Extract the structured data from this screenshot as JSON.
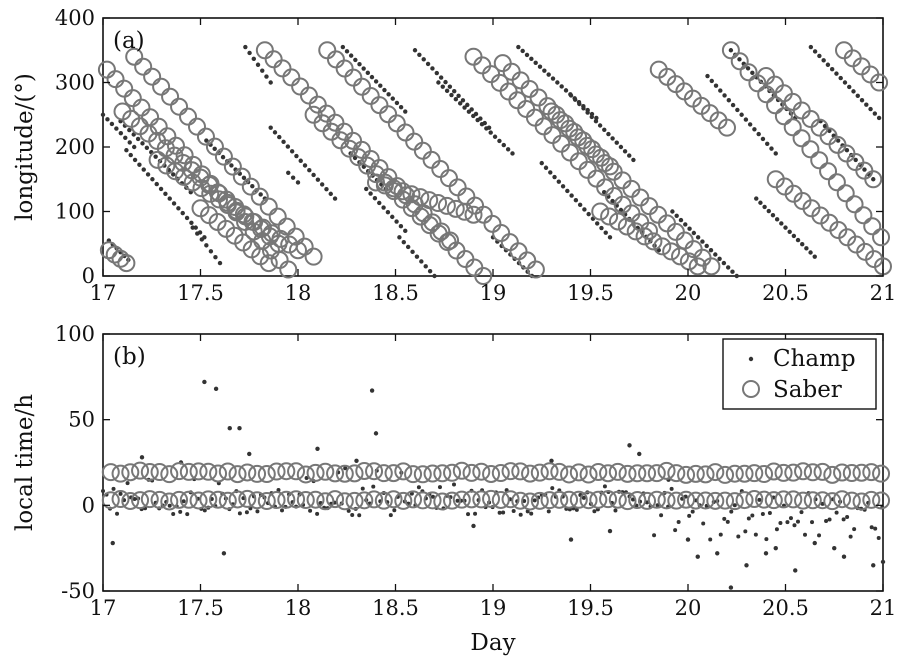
{
  "chart_data": [
    {
      "type": "scatter",
      "panel_label": "(a)",
      "xlabel": "",
      "ylabel": "longitude/(°)",
      "xlim": [
        17,
        21
      ],
      "ylim": [
        0,
        400
      ],
      "xticks": [
        17,
        17.5,
        18,
        18.5,
        19,
        19.5,
        20,
        20.5,
        21
      ],
      "xtick_labels": [
        "17",
        "17.5",
        "18",
        "18.5",
        "19",
        "19.5",
        "20",
        "20.5",
        "21"
      ],
      "yticks": [
        0,
        100,
        200,
        300,
        400
      ],
      "ytick_labels": [
        "0",
        "100",
        "200",
        "300",
        "400"
      ],
      "grid": false,
      "legend": null,
      "series": [
        {
          "name": "Champ",
          "marker": "dot",
          "color": "#333333",
          "tracks": [
            {
              "x": [
                17.0,
                17.16
              ],
              "y": [
                250,
                200
              ]
            },
            {
              "x": [
                17.03,
                17.13
              ],
              "y": [
                55,
                25
              ]
            },
            {
              "x": [
                17.09,
                17.45
              ],
              "y": [
                240,
                130
              ]
            },
            {
              "x": [
                17.12,
                17.52
              ],
              "y": [
                195,
                60
              ]
            },
            {
              "x": [
                17.46,
                17.6
              ],
              "y": [
                75,
                20
              ]
            },
            {
              "x": [
                17.53,
                17.83
              ],
              "y": [
                210,
                120
              ]
            },
            {
              "x": [
                17.73,
                17.86
              ],
              "y": [
                355,
                300
              ]
            },
            {
              "x": [
                17.86,
                18.19
              ],
              "y": [
                230,
                120
              ]
            },
            {
              "x": [
                17.95,
                18.0
              ],
              "y": [
                160,
                145
              ]
            },
            {
              "x": [
                18.23,
                18.55
              ],
              "y": [
                355,
                255
              ]
            },
            {
              "x": [
                18.27,
                18.45
              ],
              "y": [
                190,
                135
              ]
            },
            {
              "x": [
                18.35,
                18.55
              ],
              "y": [
                135,
                70
              ]
            },
            {
              "x": [
                18.52,
                18.7
              ],
              "y": [
                60,
                0
              ]
            },
            {
              "x": [
                18.6,
                18.98
              ],
              "y": [
                350,
                230
              ]
            },
            {
              "x": [
                18.72,
                19.1
              ],
              "y": [
                300,
                190
              ]
            },
            {
              "x": [
                19.0,
                19.2
              ],
              "y": [
                60,
                0
              ]
            },
            {
              "x": [
                19.13,
                19.53
              ],
              "y": [
                355,
                245
              ]
            },
            {
              "x": [
                19.25,
                19.6
              ],
              "y": [
                175,
                60
              ]
            },
            {
              "x": [
                19.4,
                19.72
              ],
              "y": [
                280,
                180
              ]
            },
            {
              "x": [
                19.57,
                19.85
              ],
              "y": [
                130,
                40
              ]
            },
            {
              "x": [
                19.92,
                20.25
              ],
              "y": [
                100,
                0
              ]
            },
            {
              "x": [
                20.1,
                20.45
              ],
              "y": [
                310,
                190
              ]
            },
            {
              "x": [
                20.22,
                20.55
              ],
              "y": [
                350,
                245
              ]
            },
            {
              "x": [
                20.35,
                20.65
              ],
              "y": [
                120,
                30
              ]
            },
            {
              "x": [
                20.63,
                20.98
              ],
              "y": [
                355,
                245
              ]
            },
            {
              "x": [
                20.68,
                20.95
              ],
              "y": [
                240,
                150
              ]
            }
          ]
        },
        {
          "name": "Saber",
          "marker": "open-circle",
          "color": "#777777",
          "tracks": [
            {
              "x": [
                17.02,
                17.95
              ],
              "y": [
                320,
                10
              ]
            },
            {
              "x": [
                17.16,
                18.08
              ],
              "y": [
                340,
                30
              ]
            },
            {
              "x": [
                17.1,
                17.9
              ],
              "y": [
                255,
                50
              ]
            },
            {
              "x": [
                17.28,
                18.0
              ],
              "y": [
                180,
                40
              ]
            },
            {
              "x": [
                17.5,
                17.85
              ],
              "y": [
                105,
                20
              ]
            },
            {
              "x": [
                17.03,
                17.12
              ],
              "y": [
                40,
                20
              ]
            },
            {
              "x": [
                17.83,
                18.78
              ],
              "y": [
                350,
                55
              ]
            },
            {
              "x": [
                18.08,
                18.95
              ],
              "y": [
                250,
                0
              ]
            },
            {
              "x": [
                18.15,
                19.22
              ],
              "y": [
                350,
                10
              ]
            },
            {
              "x": [
                18.4,
                18.9
              ],
              "y": [
                145,
                95
              ]
            },
            {
              "x": [
                18.9,
                19.8
              ],
              "y": [
                340,
                70
              ]
            },
            {
              "x": [
                19.05,
                19.6
              ],
              "y": [
                330,
                170
              ]
            },
            {
              "x": [
                19.3,
                20.12
              ],
              "y": [
                255,
                15
              ]
            },
            {
              "x": [
                19.55,
                20.05
              ],
              "y": [
                100,
                15
              ]
            },
            {
              "x": [
                19.85,
                20.2
              ],
              "y": [
                320,
                230
              ]
            },
            {
              "x": [
                20.22,
                20.99
              ],
              "y": [
                350,
                60
              ]
            },
            {
              "x": [
                20.4,
                20.95
              ],
              "y": [
                310,
                150
              ]
            },
            {
              "x": [
                20.45,
                21.0
              ],
              "y": [
                150,
                15
              ]
            },
            {
              "x": [
                20.8,
                20.98
              ],
              "y": [
                350,
                300
              ]
            }
          ]
        }
      ]
    },
    {
      "type": "scatter",
      "panel_label": "(b)",
      "xlabel": "Day",
      "ylabel": "local time/h",
      "xlim": [
        17,
        21
      ],
      "ylim": [
        -50,
        100
      ],
      "xticks": [
        17,
        17.5,
        18,
        18.5,
        19,
        19.5,
        20,
        20.5,
        21
      ],
      "xtick_labels": [
        "17",
        "17.5",
        "18",
        "18.5",
        "19",
        "19.5",
        "20",
        "20.5",
        "21"
      ],
      "yticks": [
        -50,
        0,
        50,
        100
      ],
      "ytick_labels": [
        "-50",
        "0",
        "50",
        "100"
      ],
      "grid": false,
      "legend": {
        "position": "top-right",
        "entries": [
          {
            "label": "Champ",
            "marker": "dot"
          },
          {
            "label": "Saber",
            "marker": "open-circle"
          }
        ]
      },
      "series": [
        {
          "name": "Champ",
          "marker": "dot",
          "color": "#333333",
          "description_points": {
            "x": [
              17.52,
              17.58,
              17.65,
              17.7,
              17.75,
              18.38,
              18.4,
              19.7,
              19.75,
              17.2,
              17.4,
              18.1,
              18.3,
              19.3,
              19.9,
              20.05,
              20.15,
              20.22,
              20.3,
              20.45,
              20.55,
              20.65,
              20.8,
              20.95,
              17.05,
              17.62,
              18.9,
              19.4,
              19.6,
              20.0,
              20.4,
              20.75,
              21.0
            ],
            "y": [
              72,
              68,
              45,
              45,
              30,
              67,
              42,
              35,
              30,
              28,
              25,
              33,
              26,
              26,
              15,
              -30,
              -28,
              -48,
              -35,
              -25,
              -38,
              -22,
              -30,
              -35,
              -22,
              -28,
              -12,
              -20,
              -15,
              -20,
              -28,
              -25,
              -33
            ]
          }
        },
        {
          "name": "Saber",
          "marker": "open-circle",
          "color": "#777777",
          "bands": [
            {
              "y": 19,
              "spread": 2.5
            },
            {
              "y": 3,
              "spread": 1.5
            }
          ]
        }
      ]
    }
  ]
}
